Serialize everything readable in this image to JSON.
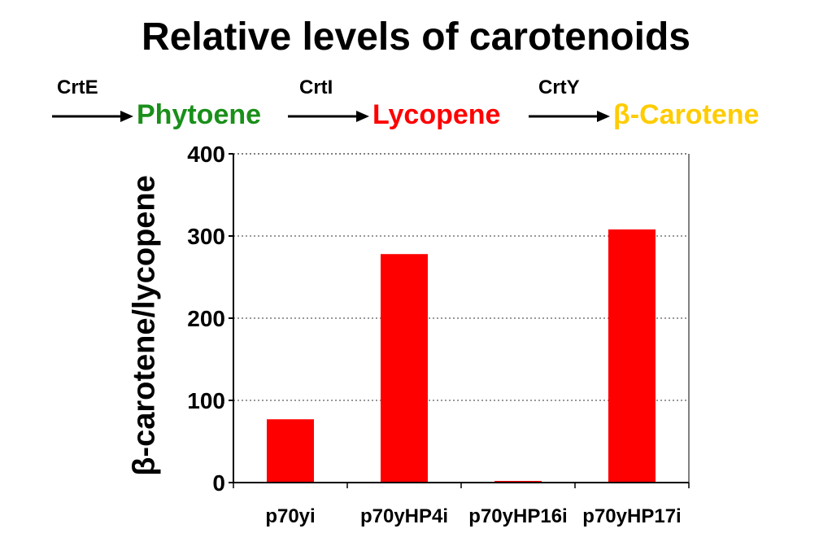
{
  "title": "Relative levels of carotenoids",
  "pathway": {
    "enzymes": [
      "CrtE",
      "CrtI",
      "CrtY"
    ],
    "compounds": [
      {
        "label": "Phytoene",
        "color": "#1a8f1a"
      },
      {
        "label": "Lycopene",
        "color": "#ff0000"
      },
      {
        "label": "β-Carotene",
        "color": "#ffcc00"
      }
    ]
  },
  "chart_data": {
    "type": "bar",
    "title": "Relative levels of carotenoids",
    "xlabel": "",
    "ylabel": "β-carotene/lycopene",
    "categories": [
      "p70yi",
      "p70yHP4i",
      "p70yHP16i",
      "p70yHP17i"
    ],
    "values": [
      77,
      278,
      2,
      308
    ],
    "ylim": [
      0,
      400
    ],
    "yticks": [
      0,
      100,
      200,
      300,
      400
    ],
    "grid": true,
    "bar_color": "#ff0000"
  }
}
